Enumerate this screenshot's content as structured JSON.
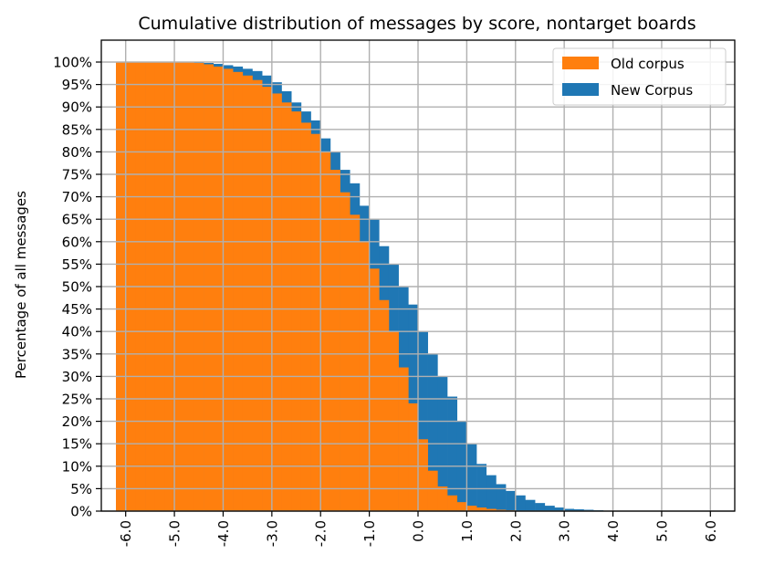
{
  "chart_data": {
    "type": "bar",
    "title": "Cumulative distribution of messages by score, nontarget boards",
    "xlabel": "",
    "ylabel": "Percentage of all messages",
    "xlim": [
      -6.5,
      6.5
    ],
    "ylim": [
      0,
      1.0
    ],
    "grid": true,
    "legend_position": "top-right",
    "x_ticks": [
      -6.0,
      -5.0,
      -4.0,
      -3.0,
      -2.0,
      -1.0,
      0.0,
      1.0,
      2.0,
      3.0,
      4.0,
      5.0,
      6.0
    ],
    "x_tick_labels": [
      "-6.0",
      "-5.0",
      "-4.0",
      "-3.0",
      "-2.0",
      "-1.0",
      "0.0",
      "1.0",
      "2.0",
      "3.0",
      "4.0",
      "5.0",
      "6.0"
    ],
    "y_ticks": [
      0,
      0.05,
      0.1,
      0.15,
      0.2,
      0.25,
      0.3,
      0.35,
      0.4,
      0.45,
      0.5,
      0.55,
      0.6,
      0.65,
      0.7,
      0.75,
      0.8,
      0.85,
      0.9,
      0.95,
      1.0
    ],
    "y_tick_labels": [
      "0%",
      "5%",
      "10%",
      "15%",
      "20%",
      "25%",
      "30%",
      "35%",
      "40%",
      "45%",
      "50%",
      "55%",
      "60%",
      "65%",
      "70%",
      "75%",
      "80%",
      "85%",
      "90%",
      "95%",
      "100%"
    ],
    "bin_width": 0.2,
    "series": [
      {
        "name": "New Corpus",
        "color": "#1f77b4",
        "x": [
          -6.1,
          -5.9,
          -5.7,
          -5.5,
          -5.3,
          -5.1,
          -4.9,
          -4.7,
          -4.5,
          -4.3,
          -4.1,
          -3.9,
          -3.7,
          -3.5,
          -3.3,
          -3.1,
          -2.9,
          -2.7,
          -2.5,
          -2.3,
          -2.1,
          -1.9,
          -1.7,
          -1.5,
          -1.3,
          -1.1,
          -0.9,
          -0.7,
          -0.5,
          -0.3,
          -0.1,
          0.1,
          0.3,
          0.5,
          0.7,
          0.9,
          1.1,
          1.3,
          1.5,
          1.7,
          1.9,
          2.1,
          2.3,
          2.5,
          2.7,
          2.9,
          3.1,
          3.3,
          3.5,
          3.7,
          3.9,
          4.1,
          4.3,
          4.5,
          4.7,
          4.9,
          5.1,
          5.3,
          5.5,
          5.7,
          5.9,
          6.1,
          6.3
        ],
        "values": [
          1.0,
          1.0,
          1.0,
          1.0,
          1.0,
          1.0,
          1.0,
          1.0,
          1.0,
          0.998,
          0.996,
          0.993,
          0.99,
          0.985,
          0.98,
          0.97,
          0.955,
          0.935,
          0.91,
          0.89,
          0.87,
          0.83,
          0.8,
          0.76,
          0.73,
          0.68,
          0.65,
          0.59,
          0.55,
          0.5,
          0.46,
          0.4,
          0.35,
          0.3,
          0.255,
          0.2,
          0.15,
          0.105,
          0.08,
          0.06,
          0.045,
          0.035,
          0.025,
          0.018,
          0.012,
          0.008,
          0.005,
          0.004,
          0.003,
          0.002,
          0.001,
          0.001,
          0.001,
          0.001,
          0.001,
          0.001,
          0.001,
          0.001,
          0.001,
          0.001,
          0.001,
          0.001,
          0.001
        ]
      },
      {
        "name": "Old corpus",
        "color": "#ff7f0e",
        "x": [
          -6.1,
          -5.9,
          -5.7,
          -5.5,
          -5.3,
          -5.1,
          -4.9,
          -4.7,
          -4.5,
          -4.3,
          -4.1,
          -3.9,
          -3.7,
          -3.5,
          -3.3,
          -3.1,
          -2.9,
          -2.7,
          -2.5,
          -2.3,
          -2.1,
          -1.9,
          -1.7,
          -1.5,
          -1.3,
          -1.1,
          -0.9,
          -0.7,
          -0.5,
          -0.3,
          -0.1,
          0.1,
          0.3,
          0.5,
          0.7,
          0.9,
          1.1,
          1.3,
          1.5,
          1.7,
          1.9,
          2.1,
          2.3,
          2.5,
          2.7,
          2.9,
          3.1,
          3.3,
          3.5,
          3.7,
          3.9,
          4.1,
          4.3,
          4.5,
          4.7,
          4.9,
          5.1,
          5.3,
          5.5,
          5.7,
          5.9,
          6.1,
          6.3
        ],
        "values": [
          1.0,
          1.0,
          1.0,
          1.0,
          1.0,
          1.0,
          1.0,
          1.0,
          0.998,
          0.995,
          0.99,
          0.985,
          0.978,
          0.97,
          0.96,
          0.945,
          0.93,
          0.91,
          0.89,
          0.865,
          0.84,
          0.8,
          0.76,
          0.71,
          0.66,
          0.6,
          0.54,
          0.47,
          0.4,
          0.32,
          0.24,
          0.16,
          0.09,
          0.055,
          0.035,
          0.02,
          0.012,
          0.008,
          0.005,
          0.003,
          0.002,
          0.001,
          0.001,
          0.0,
          0.0,
          0.0,
          0.0,
          0.0,
          0.0,
          0.0,
          0.0,
          0.0,
          0.0,
          0.0,
          0.0,
          0.0,
          0.0,
          0.0,
          0.0,
          0.0,
          0.0,
          0.0,
          0.0
        ]
      }
    ],
    "legend": [
      {
        "label": "Old corpus",
        "color": "#ff7f0e"
      },
      {
        "label": "New Corpus",
        "color": "#1f77b4"
      }
    ]
  }
}
